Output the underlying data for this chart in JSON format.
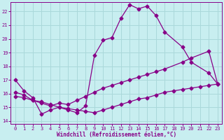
{
  "xlabel": "Windchill (Refroidissement éolien,°C)",
  "bg_color": "#c8eef0",
  "grid_color": "#aad8da",
  "line_color": "#880088",
  "xlim": [
    -0.5,
    23.5
  ],
  "ylim": [
    13.8,
    22.7
  ],
  "yticks": [
    14,
    15,
    16,
    17,
    18,
    19,
    20,
    21,
    22
  ],
  "xticks": [
    0,
    1,
    2,
    3,
    4,
    5,
    6,
    7,
    8,
    9,
    10,
    11,
    12,
    13,
    14,
    15,
    16,
    17,
    18,
    19,
    20,
    21,
    22,
    23
  ],
  "line_top_x": [
    0,
    1,
    2,
    3,
    4,
    5,
    6,
    7,
    8,
    9,
    10,
    11,
    12,
    13,
    14,
    15,
    16,
    17,
    19,
    20,
    22,
    23
  ],
  "line_top_y": [
    17.0,
    16.2,
    15.7,
    14.5,
    14.8,
    15.0,
    14.8,
    14.6,
    15.1,
    18.8,
    19.9,
    20.1,
    21.5,
    22.5,
    22.2,
    22.4,
    21.7,
    20.5,
    19.4,
    18.3,
    17.5,
    16.7
  ],
  "line_mid_x": [
    0,
    1,
    2,
    3,
    4,
    5,
    6,
    7,
    8,
    9,
    10,
    11,
    12,
    13,
    14,
    15,
    16,
    17,
    19,
    20,
    22,
    23
  ],
  "line_mid_y": [
    16.1,
    15.9,
    15.5,
    15.3,
    15.1,
    15.3,
    15.2,
    15.5,
    15.8,
    16.1,
    16.4,
    16.6,
    16.8,
    17.0,
    17.2,
    17.4,
    17.6,
    17.8,
    18.3,
    18.6,
    19.1,
    16.7
  ],
  "line_bot_x": [
    0,
    1,
    2,
    3,
    4,
    5,
    6,
    7,
    8,
    9,
    10,
    11,
    12,
    13,
    14,
    15,
    16,
    17,
    18,
    19,
    20,
    21,
    22,
    23
  ],
  "line_bot_y": [
    15.8,
    15.7,
    15.5,
    15.4,
    15.2,
    15.0,
    14.9,
    14.8,
    14.7,
    14.6,
    14.8,
    15.0,
    15.2,
    15.4,
    15.6,
    15.7,
    15.9,
    16.1,
    16.2,
    16.3,
    16.4,
    16.5,
    16.6,
    16.7
  ]
}
